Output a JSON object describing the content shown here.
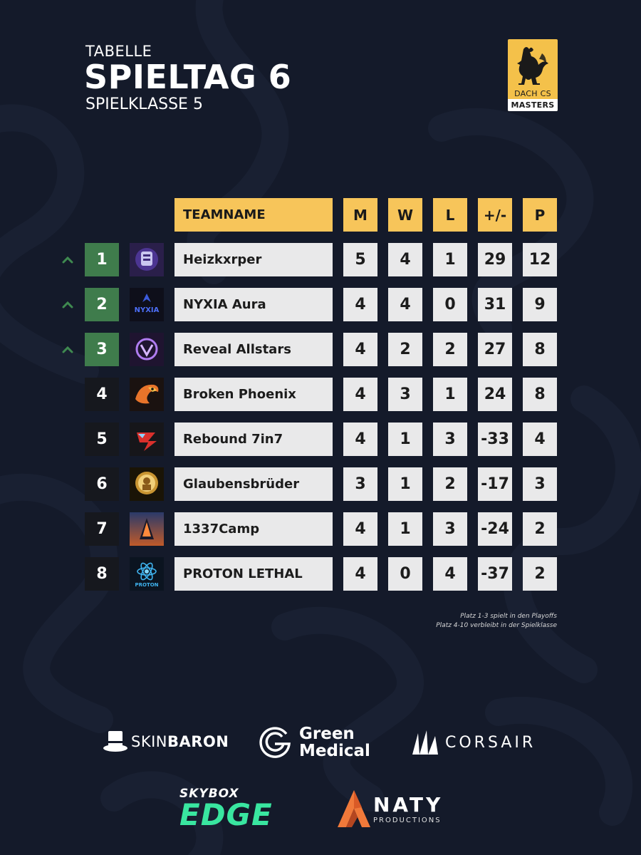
{
  "header": {
    "kicker": "TABELLE",
    "title": "SPIELTAG 6",
    "subtitle": "SPIELKLASSE 5"
  },
  "brand": {
    "line1": "DACH CS",
    "line2": "MASTERS",
    "icon": "rooster-icon",
    "color": "#f4c14a"
  },
  "table": {
    "headers": {
      "name": "TEAMNAME",
      "m": "M",
      "w": "W",
      "l": "L",
      "diff": "+/-",
      "p": "P"
    },
    "rows": [
      {
        "rank": "1",
        "name": "Heizkxrper",
        "m": "5",
        "w": "4",
        "l": "1",
        "diff": "29",
        "p": "12",
        "promoted": true,
        "logo_icon": "heizkxrper-logo-icon"
      },
      {
        "rank": "2",
        "name": "NYXIA Aura",
        "m": "4",
        "w": "4",
        "l": "0",
        "diff": "31",
        "p": "9",
        "promoted": true,
        "logo_icon": "nyxia-logo-icon"
      },
      {
        "rank": "3",
        "name": "Reveal Allstars",
        "m": "4",
        "w": "2",
        "l": "2",
        "diff": "27",
        "p": "8",
        "promoted": true,
        "logo_icon": "reveal-logo-icon"
      },
      {
        "rank": "4",
        "name": "Broken Phoenix",
        "m": "4",
        "w": "3",
        "l": "1",
        "diff": "24",
        "p": "8",
        "promoted": false,
        "logo_icon": "phoenix-logo-icon"
      },
      {
        "rank": "5",
        "name": "Rebound 7in7",
        "m": "4",
        "w": "1",
        "l": "3",
        "diff": "-33",
        "p": "4",
        "promoted": false,
        "logo_icon": "rebound-logo-icon"
      },
      {
        "rank": "6",
        "name": "Glaubensbrüder",
        "m": "3",
        "w": "1",
        "l": "2",
        "diff": "-17",
        "p": "3",
        "promoted": false,
        "logo_icon": "glaubensbrueder-logo-icon"
      },
      {
        "rank": "7",
        "name": "1337Camp",
        "m": "4",
        "w": "1",
        "l": "3",
        "diff": "-24",
        "p": "2",
        "promoted": false,
        "logo_icon": "1337camp-logo-icon"
      },
      {
        "rank": "8",
        "name": "PROTON LETHAL",
        "m": "4",
        "w": "0",
        "l": "4",
        "diff": "-37",
        "p": "2",
        "promoted": false,
        "logo_icon": "proton-logo-icon"
      }
    ]
  },
  "notes": {
    "line1": "Platz 1-3 spielt in den Playoffs",
    "line2": "Platz 4-10 verbleibt in der Spielklasse"
  },
  "sponsors": {
    "skinbaron": {
      "thin": "SKIN",
      "bold": "BARON",
      "icon": "top-hat-icon"
    },
    "green_medical": {
      "line1": "Green",
      "line2": "Medical",
      "icon": "green-medical-g-icon"
    },
    "corsair": {
      "text": "CORSAIR",
      "icon": "corsair-sails-icon"
    },
    "skybox": {
      "line1": "SKYBOX",
      "line2": "EDGE"
    },
    "anaty": {
      "text": "NATY",
      "sub": "PRODUCTIONS",
      "icon": "anaty-a-icon"
    }
  },
  "colors": {
    "background": "#141a2a",
    "accent_yellow": "#f7c55a",
    "promoted_green": "#3f7c4c",
    "row_bg": "#e9e9ea"
  }
}
